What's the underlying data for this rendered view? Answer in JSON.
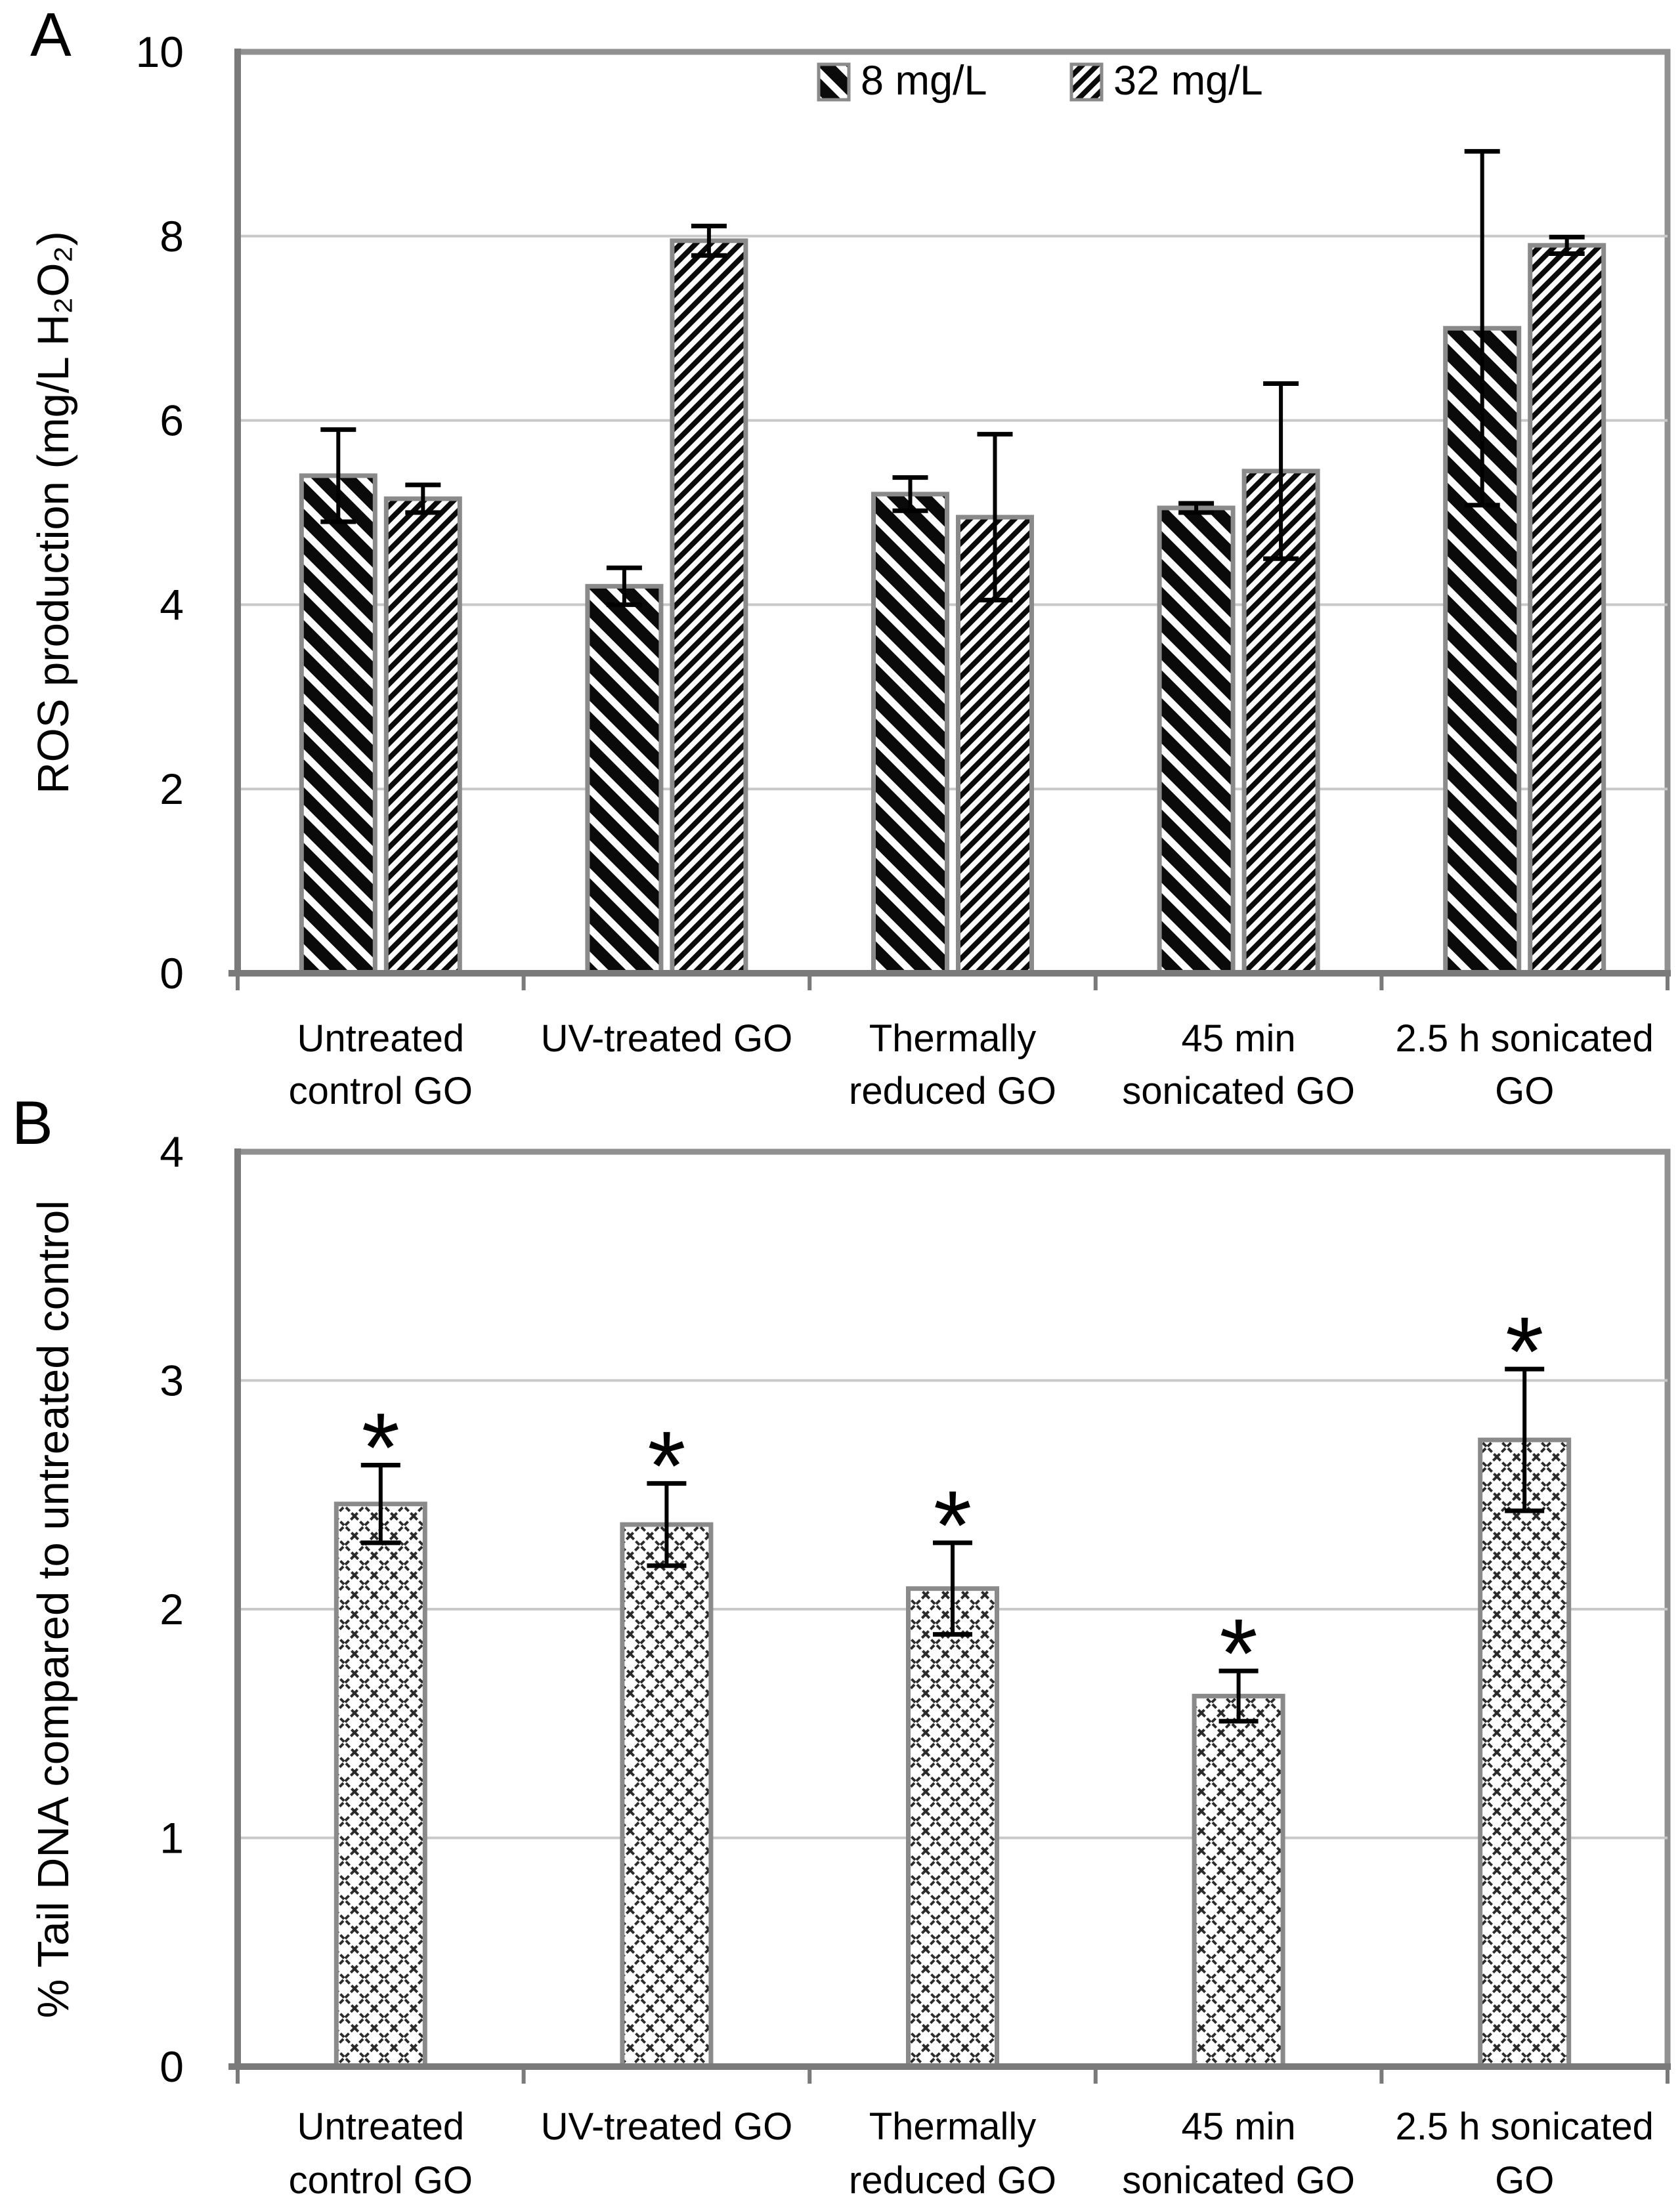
{
  "colors": {
    "grid": "#c8c8c8",
    "plot_border": "#909090",
    "axis": "#7a7a7a",
    "bar_outline": "#8a8a8a",
    "error": "#000000",
    "text": "#000000",
    "hatch_ink": "#0a0a0a"
  },
  "chart_data": [
    {
      "panel_label": "A",
      "type": "bar",
      "ylabel": "ROS production (mg/L H₂O₂)",
      "ylim": [
        0,
        10
      ],
      "yticks": [
        0,
        2,
        4,
        6,
        8,
        10
      ],
      "grid": true,
      "legend": true,
      "legend_position": "top-center-inside",
      "categories": [
        [
          "Untreated",
          "control GO"
        ],
        [
          "UV-treated GO"
        ],
        [
          "Thermally",
          "reduced GO"
        ],
        [
          "45 min",
          "sonicated GO"
        ],
        [
          "2.5 h sonicated",
          "GO"
        ]
      ],
      "series": [
        {
          "name": "8 mg/L",
          "pattern": "hatch-bold-backslash",
          "values": [
            5.4,
            4.2,
            5.2,
            5.05,
            7.0
          ],
          "errors": [
            0.5,
            0.2,
            0.18,
            0.05,
            1.92
          ]
        },
        {
          "name": "32 mg/L",
          "pattern": "hatch-thin-slash",
          "values": [
            5.15,
            7.95,
            4.95,
            5.45,
            7.9
          ],
          "errors": [
            0.15,
            0.16,
            0.9,
            0.95,
            0.09
          ]
        }
      ]
    },
    {
      "panel_label": "B",
      "type": "bar",
      "ylabel": "% Tail DNA compared to untreated control",
      "ylim": [
        0,
        4
      ],
      "yticks": [
        0,
        1,
        2,
        3,
        4
      ],
      "grid": true,
      "legend": false,
      "categories": [
        [
          "Untreated",
          "control GO"
        ],
        [
          "UV-treated GO"
        ],
        [
          "Thermally",
          "reduced GO"
        ],
        [
          "45 min",
          "sonicated GO"
        ],
        [
          "2.5 h sonicated",
          "GO"
        ]
      ],
      "series": [
        {
          "name": "% Tail DNA",
          "pattern": "crosshatch",
          "values": [
            2.46,
            2.37,
            2.09,
            1.62,
            2.74
          ],
          "errors": [
            0.17,
            0.18,
            0.2,
            0.11,
            0.31
          ],
          "labels": [
            "*",
            "*",
            "*",
            "*",
            "*"
          ]
        }
      ]
    }
  ]
}
